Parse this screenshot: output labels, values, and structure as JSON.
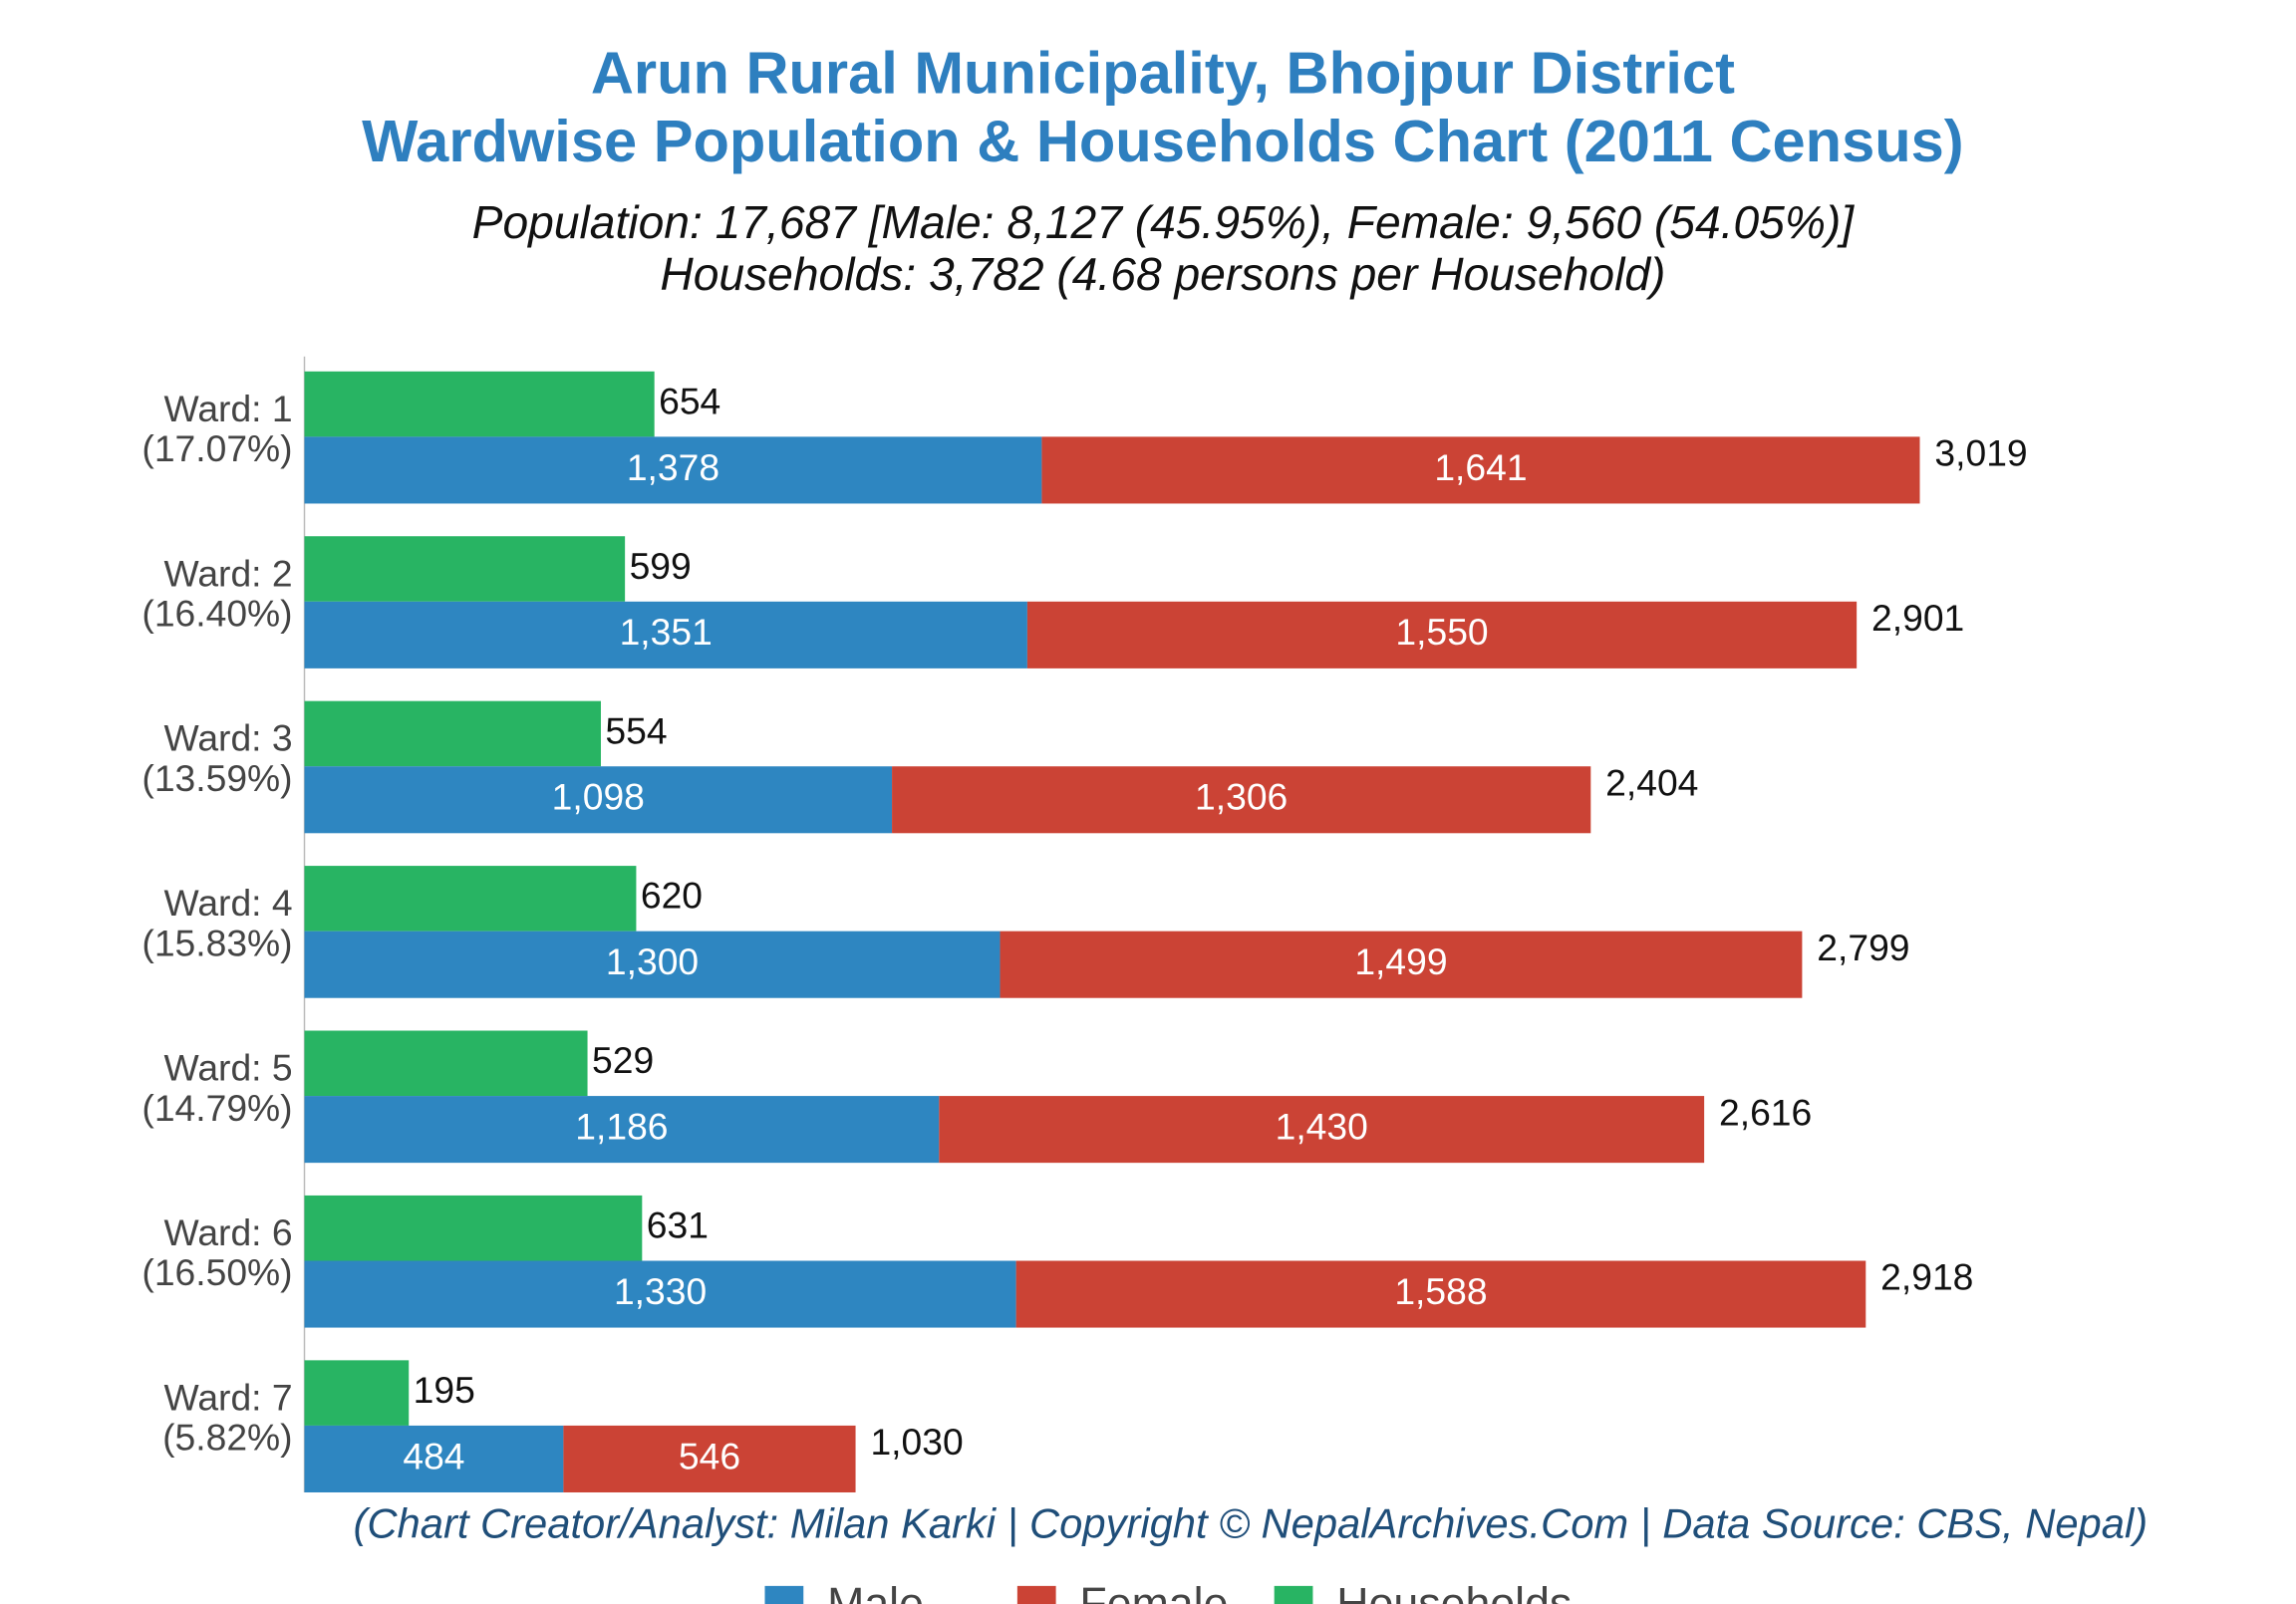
{
  "chart_data": {
    "type": "bar",
    "title": [
      "Arun Rural Municipality, Bhojpur District",
      "Wardwise Population & Households Chart (2011 Census)"
    ],
    "subtitle": [
      "Population: 17,687 [Male: 8,127 (45.95%), Female: 9,560 (54.05%)]",
      "Households: 3,782 (4.68 persons per Household)"
    ],
    "credit": "(Chart Creator/Analyst: Milan Karki | Copyright © NepalArchives.Com | Data Source: CBS, Nepal)",
    "categories": [
      "Ward: 1",
      "Ward: 2",
      "Ward: 3",
      "Ward: 4",
      "Ward: 5",
      "Ward: 6",
      "Ward: 7"
    ],
    "category_shares": [
      "(17.07%)",
      "(16.40%)",
      "(13.59%)",
      "(15.83%)",
      "(14.79%)",
      "(16.50%)",
      "(5.82%)"
    ],
    "series": [
      {
        "name": "Male",
        "color": "#2e86c1",
        "values": [
          1378,
          1351,
          1098,
          1300,
          1186,
          1330,
          484
        ],
        "value_labels": [
          "1,378",
          "1,351",
          "1,098",
          "1,300",
          "1,186",
          "1,330",
          "484"
        ]
      },
      {
        "name": "Female",
        "color": "#cb4335",
        "values": [
          1641,
          1550,
          1306,
          1499,
          1430,
          1588,
          546
        ],
        "value_labels": [
          "1,641",
          "1,550",
          "1,306",
          "1,499",
          "1,430",
          "1,588",
          "546"
        ]
      },
      {
        "name": "Households",
        "color": "#28b463",
        "values": [
          654,
          599,
          554,
          620,
          529,
          631,
          195
        ]
      }
    ],
    "totals": {
      "values": [
        3019,
        2901,
        2404,
        2799,
        2616,
        2918,
        1030
      ],
      "value_labels": [
        "3,019",
        "2,901",
        "2,404",
        "2,799",
        "2,616",
        "2,918",
        "1,030"
      ]
    },
    "xlim": [
      0,
      3500
    ],
    "legend": "bottom"
  }
}
